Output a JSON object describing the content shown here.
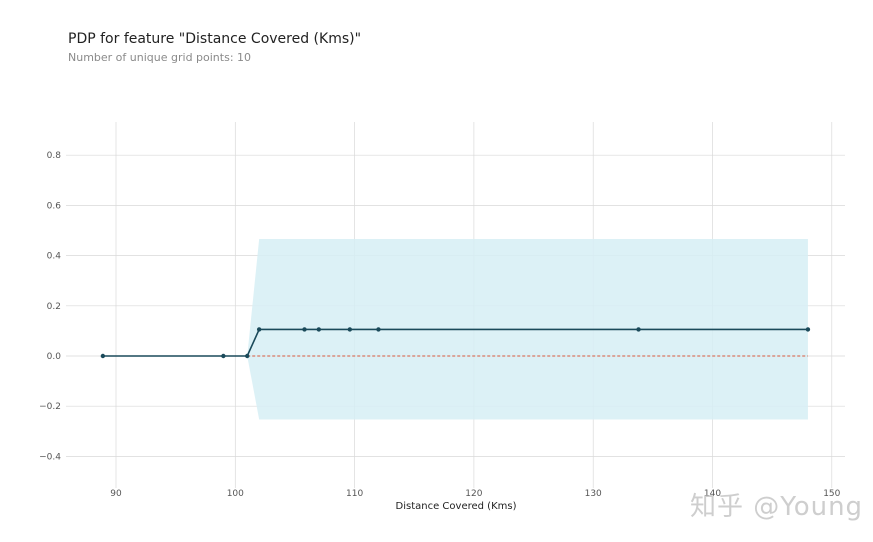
{
  "header": {
    "title": "PDP for feature \"Distance Covered (Kms)\"",
    "subtitle": "Number of unique grid points: 10"
  },
  "watermark": "知乎 @Young",
  "colors": {
    "line": "#1a4a5a",
    "band": "#d6eef5",
    "baseline": "#d9593e",
    "grid": "#d9d9d9"
  },
  "chart_data": {
    "type": "line",
    "title": "PDP for feature \"Distance Covered (Kms)\"",
    "subtitle": "Number of unique grid points: 10",
    "xlabel": "Distance Covered (Kms)",
    "ylabel": "",
    "xlim": [
      86,
      151
    ],
    "ylim": [
      -0.5,
      0.93
    ],
    "x_ticks": [
      90,
      100,
      110,
      120,
      130,
      140,
      150
    ],
    "x_tick_labels": [
      "90",
      "100",
      "110",
      "120",
      "130",
      "140",
      "150"
    ],
    "y_ticks": [
      -0.4,
      -0.2,
      0.0,
      0.2,
      0.4,
      0.6,
      0.8
    ],
    "y_tick_labels": [
      "−0.4",
      "−0.2",
      "0.0",
      "0.2",
      "0.4",
      "0.6",
      "0.8"
    ],
    "grid": true,
    "legend": null,
    "series": [
      {
        "name": "PDP",
        "x": [
          88.9,
          99.0,
          101.0,
          102.0,
          105.8,
          107.0,
          109.6,
          112.0,
          133.8,
          148.0
        ],
        "values": [
          0.0,
          0.0,
          0.0,
          0.106,
          0.106,
          0.106,
          0.106,
          0.106,
          0.106,
          0.106
        ]
      },
      {
        "name": "confidence_upper",
        "x": [
          101.0,
          102.0,
          148.0
        ],
        "values": [
          0.0,
          0.466,
          0.466
        ]
      },
      {
        "name": "confidence_lower",
        "x": [
          101.0,
          102.0,
          148.0
        ],
        "values": [
          0.0,
          -0.253,
          -0.253
        ]
      },
      {
        "name": "baseline",
        "x": [
          101.0,
          148.0
        ],
        "values": [
          0.0,
          0.0
        ]
      }
    ]
  }
}
